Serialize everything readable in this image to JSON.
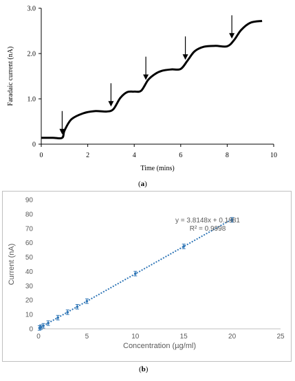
{
  "chart_data": [
    {
      "type": "line",
      "panel": "(a)",
      "xlabel": "Time (mins)",
      "ylabel": "Faradaic current (nA)",
      "xlim": [
        0,
        10
      ],
      "ylim": [
        0,
        3.0
      ],
      "x_ticks": [
        "0",
        "2",
        "4",
        "6",
        "8",
        "10"
      ],
      "y_ticks": [
        "0",
        "1.0",
        "2.0",
        "3.0"
      ],
      "grid": false,
      "series": [
        {
          "x": [
            0.0,
            0.5,
            0.9,
            1.0,
            1.3,
            1.8,
            2.3,
            2.8,
            3.1,
            3.4,
            3.7,
            4.0,
            4.3,
            4.6,
            4.9,
            5.2,
            5.6,
            6.0,
            6.3,
            6.6,
            7.0,
            7.5,
            8.0,
            8.3,
            8.6,
            9.0,
            9.5
          ],
          "y": [
            0.14,
            0.14,
            0.14,
            0.3,
            0.55,
            0.68,
            0.73,
            0.72,
            0.77,
            1.02,
            1.15,
            1.16,
            1.18,
            1.42,
            1.55,
            1.62,
            1.65,
            1.66,
            1.85,
            2.05,
            2.15,
            2.17,
            2.16,
            2.3,
            2.52,
            2.68,
            2.72
          ]
        }
      ],
      "arrows_at_x": [
        0.9,
        3.0,
        4.5,
        6.2,
        8.2
      ]
    },
    {
      "type": "scatter",
      "panel": "(b)",
      "xlabel": "Concentration (µg/ml)",
      "ylabel": "Current (nA)",
      "xlim": [
        0,
        25
      ],
      "ylim": [
        0,
        90
      ],
      "x_ticks": [
        "0",
        "5",
        "10",
        "15",
        "20",
        "25"
      ],
      "y_ticks": [
        "0",
        "10",
        "20",
        "30",
        "40",
        "50",
        "60",
        "70",
        "80",
        "90"
      ],
      "grid": false,
      "x": [
        0.1,
        0.25,
        0.5,
        1,
        2,
        3,
        4,
        5,
        10,
        15,
        20
      ],
      "y": [
        0.6,
        1.2,
        2.1,
        4.0,
        7.8,
        11.6,
        15.4,
        19.3,
        38.5,
        57.5,
        76.0
      ],
      "trendline": {
        "slope": 3.8148,
        "intercept": 0.1981
      },
      "equation_text": "y = 3.8148x + 0.1981",
      "r2_text": "R² = 0.9998",
      "color": "#2e75b6"
    }
  ],
  "panel_labels": {
    "a": "a",
    "b": "b"
  }
}
